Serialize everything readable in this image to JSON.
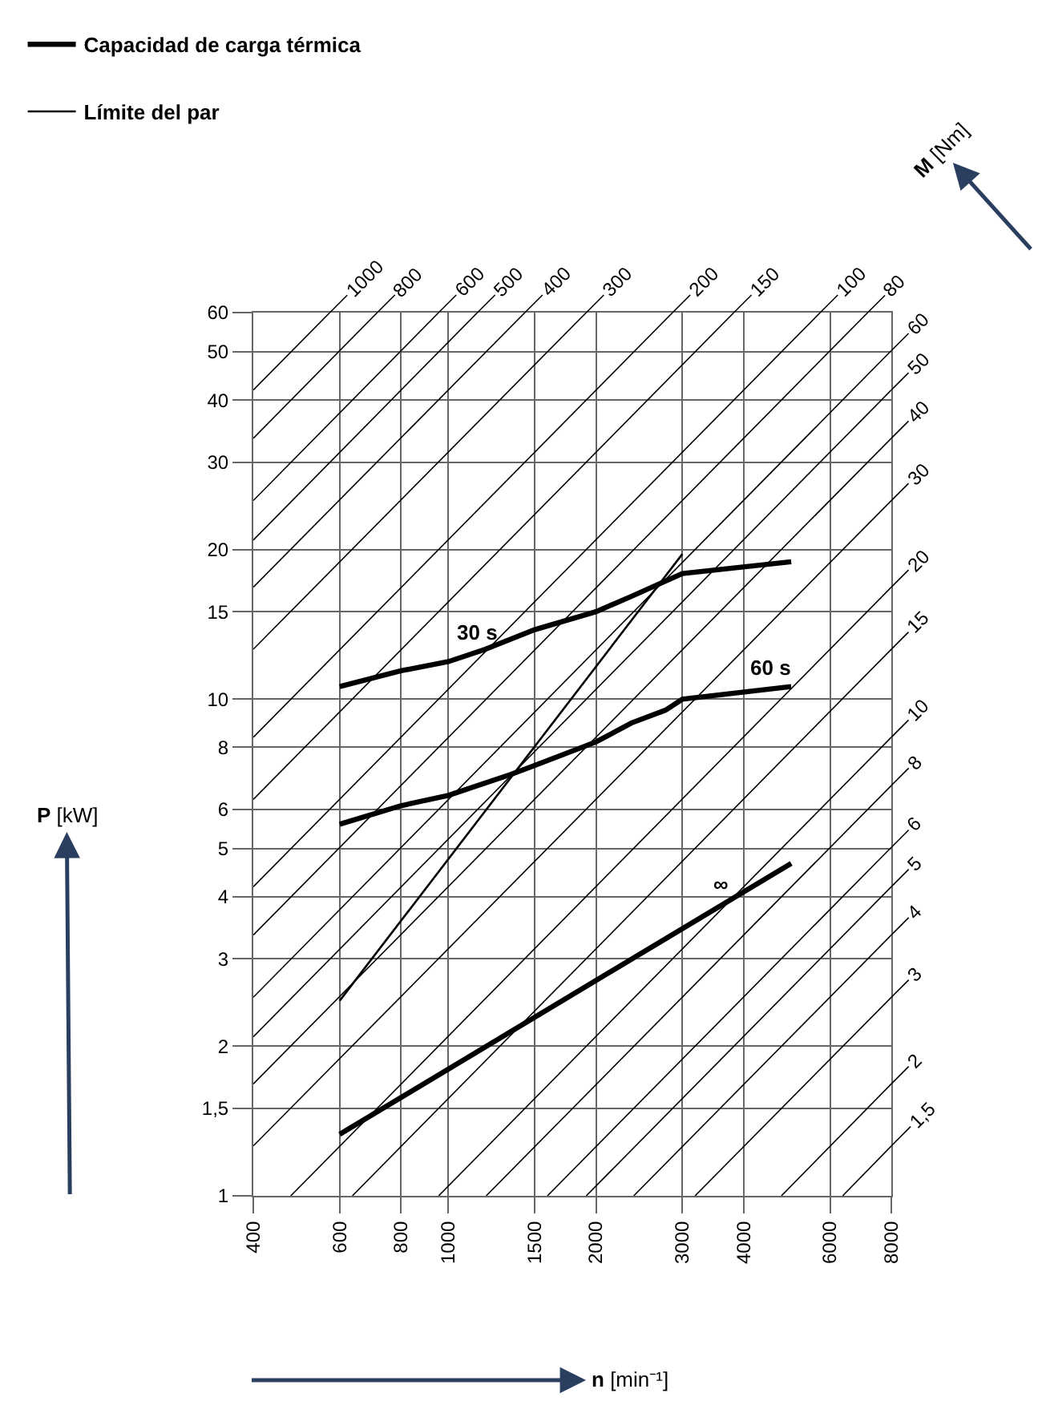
{
  "chart_data": {
    "type": "line",
    "xlabel": "n [min⁻¹]",
    "ylabel": "P [kW]",
    "log": "xy",
    "xlim": [
      400,
      8000
    ],
    "ylim": [
      1,
      60
    ],
    "xticks": [
      400,
      600,
      800,
      1000,
      1500,
      2000,
      3000,
      4000,
      6000,
      8000
    ],
    "yticks": [
      1,
      {
        "value": 1.5,
        "label": "1,5"
      },
      2,
      3,
      4,
      5,
      6,
      8,
      10,
      15,
      20,
      30,
      40,
      50,
      60
    ],
    "grid": true,
    "legend": "top left",
    "series": [
      {
        "name": "Capacidad de carga térmica",
        "color": "#000000",
        "x": [
          600,
          800,
          1000,
          1190,
          1500,
          2000,
          2360,
          3000,
          5000
        ],
        "values": [
          10.6,
          11.4,
          11.9,
          12.6,
          13.8,
          15.0,
          16.1,
          17.9,
          18.9
        ]
      },
      {
        "color": "#000000",
        "x": [
          600,
          800,
          1000,
          1340,
          1500,
          2000,
          2360,
          2770,
          3000,
          5000
        ],
        "values": [
          5.6,
          6.1,
          6.4,
          7.05,
          7.35,
          8.2,
          8.95,
          9.5,
          10.0,
          10.6
        ]
      },
      {
        "color": "#000000",
        "x": [
          600,
          5000
        ],
        "values": [
          1.33,
          4.67
        ]
      },
      {
        "name": "Límite del par",
        "color": "#000000",
        "x": [
          600,
          3000
        ],
        "values": [
          2.47,
          19.6
        ]
      },
      {
        "color": "#000000",
        "x": [
          400,
          573
        ],
        "values": [
          41.9,
          60
        ]
      },
      {
        "color": "#000000",
        "x": [
          400,
          716
        ],
        "values": [
          33.5,
          60
        ]
      },
      {
        "color": "#000000",
        "x": [
          400,
          955
        ],
        "values": [
          25.1,
          60
        ]
      },
      {
        "color": "#000000",
        "x": [
          400,
          1146
        ],
        "values": [
          20.9,
          60
        ]
      },
      {
        "color": "#000000",
        "x": [
          400,
          1432
        ],
        "values": [
          16.8,
          60
        ]
      },
      {
        "color": "#000000",
        "x": [
          400,
          1910
        ],
        "values": [
          12.6,
          60
        ]
      },
      {
        "color": "#000000",
        "x": [
          400,
          2865
        ],
        "values": [
          8.38,
          60
        ]
      },
      {
        "color": "#000000",
        "x": [
          400,
          3820
        ],
        "values": [
          6.28,
          60
        ]
      },
      {
        "color": "#000000",
        "x": [
          400,
          5729
        ],
        "values": [
          4.19,
          60
        ]
      },
      {
        "color": "#000000",
        "x": [
          400,
          7162
        ],
        "values": [
          3.35,
          60
        ]
      },
      {
        "color": "#000000",
        "x": [
          400,
          8000
        ],
        "values": [
          2.51,
          50.3
        ]
      },
      {
        "color": "#000000",
        "x": [
          400,
          8000
        ],
        "values": [
          2.09,
          41.9
        ]
      },
      {
        "color": "#000000",
        "x": [
          400,
          8000
        ],
        "values": [
          1.68,
          33.5
        ]
      },
      {
        "color": "#000000",
        "x": [
          400,
          8000
        ],
        "values": [
          1.26,
          25.1
        ]
      },
      {
        "color": "#000000",
        "x": [
          477,
          8000
        ],
        "values": [
          1,
          16.8
        ]
      },
      {
        "color": "#000000",
        "x": [
          637,
          8000
        ],
        "values": [
          1,
          12.6
        ]
      },
      {
        "color": "#000000",
        "x": [
          955,
          8000
        ],
        "values": [
          1,
          8.38
        ]
      },
      {
        "color": "#000000",
        "x": [
          1194,
          8000
        ],
        "values": [
          1,
          6.7
        ]
      },
      {
        "color": "#000000",
        "x": [
          1592,
          8000
        ],
        "values": [
          1,
          5.03
        ]
      },
      {
        "color": "#000000",
        "x": [
          1910,
          8000
        ],
        "values": [
          1,
          4.19
        ]
      },
      {
        "color": "#000000",
        "x": [
          2387,
          8000
        ],
        "values": [
          1,
          3.35
        ]
      },
      {
        "color": "#000000",
        "x": [
          3183,
          8000
        ],
        "values": [
          1,
          2.51
        ]
      },
      {
        "color": "#000000",
        "x": [
          4775,
          8000
        ],
        "values": [
          1,
          1.68
        ]
      },
      {
        "color": "#000000",
        "x": [
          6366,
          8000
        ],
        "values": [
          1,
          1.26
        ]
      }
    ],
    "annotations": [
      "M [Nm]",
      {
        "text": "30 s",
        "x": 1140,
        "y": 12.4
      },
      {
        "text": "60 s",
        "x": 4540,
        "y": 10.5
      },
      {
        "text": "∞",
        "x": 3600,
        "y": 3.85
      },
      {
        "text": "1000",
        "x": 573,
        "y": 60
      },
      {
        "text": "800",
        "x": 716,
        "y": 60
      },
      {
        "text": "600",
        "x": 955,
        "y": 60
      },
      {
        "text": "500",
        "x": 1146,
        "y": 60
      },
      {
        "text": "400",
        "x": 1432,
        "y": 60
      },
      {
        "text": "300",
        "x": 1910,
        "y": 60
      },
      {
        "text": "200",
        "x": 2865,
        "y": 60
      },
      {
        "text": "150",
        "x": 3820,
        "y": 60
      },
      {
        "text": "100",
        "x": 5729,
        "y": 60
      },
      {
        "text": "80",
        "x": 7162,
        "y": 60
      },
      {
        "text": "60",
        "x": 8000,
        "y": 50.3
      },
      {
        "text": "50",
        "x": 8000,
        "y": 41.9
      },
      {
        "text": "40",
        "x": 8000,
        "y": 33.5
      },
      {
        "text": "30",
        "x": 8000,
        "y": 25.1
      },
      {
        "text": "20",
        "x": 8000,
        "y": 16.8
      },
      {
        "text": "15",
        "x": 8000,
        "y": 12.6
      },
      {
        "text": "10",
        "x": 8000,
        "y": 8.38
      },
      {
        "text": "8",
        "x": 8000,
        "y": 6.7
      },
      {
        "text": "6",
        "x": 8000,
        "y": 5.03
      },
      {
        "text": "5",
        "x": 8000,
        "y": 4.19
      },
      {
        "text": "4",
        "x": 8000,
        "y": 3.35
      },
      {
        "text": "3",
        "x": 8000,
        "y": 2.51
      },
      {
        "text": "2",
        "x": 8000,
        "y": 1.68
      },
      {
        "text": "1,5",
        "x": 8000,
        "y": 1.26
      }
    ]
  }
}
